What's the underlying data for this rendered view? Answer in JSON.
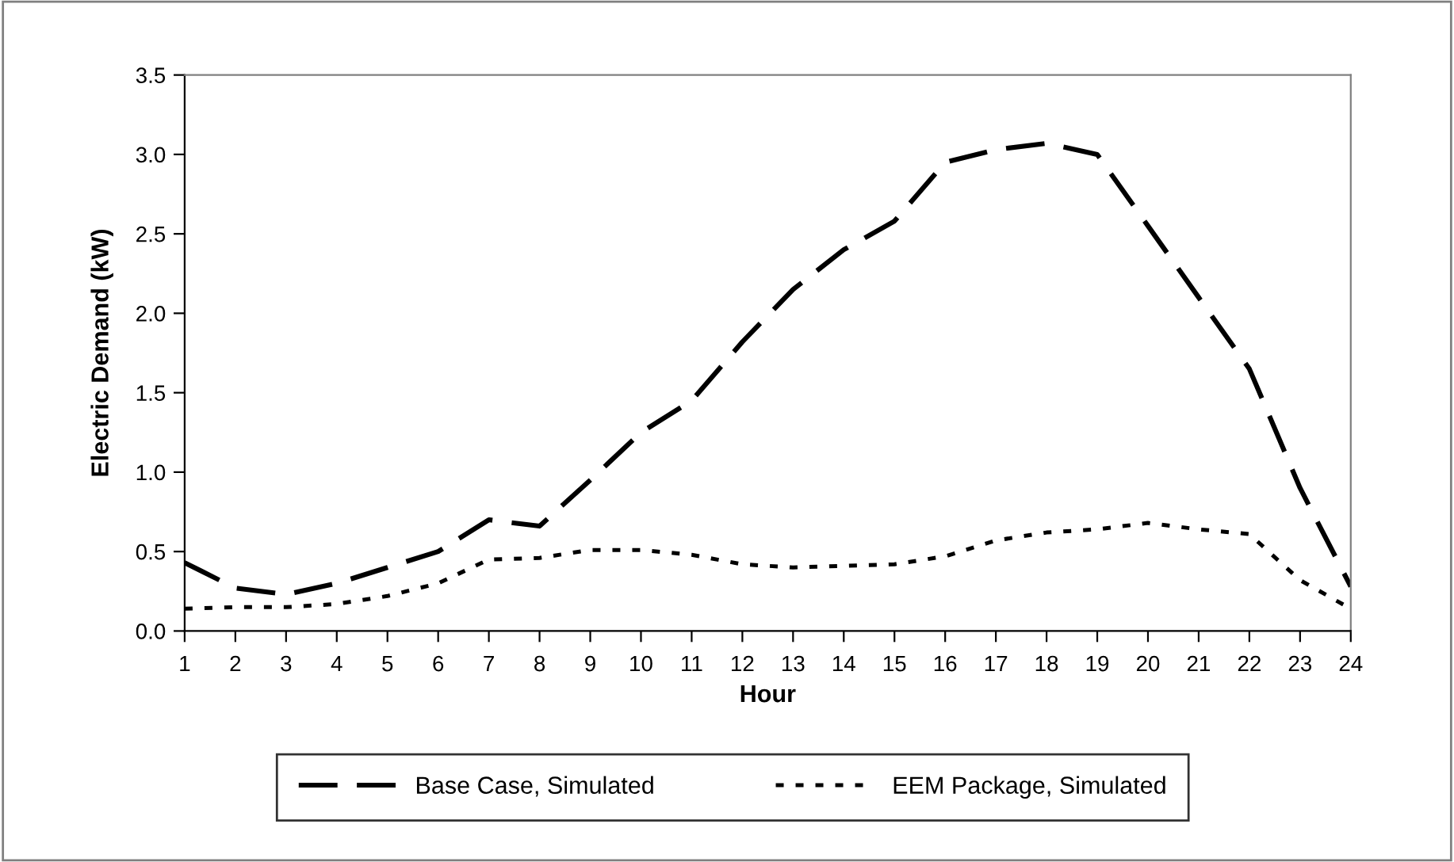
{
  "chart_data": {
    "type": "line",
    "xlabel": "Hour",
    "ylabel": "Electric Demand (kW)",
    "categories": [
      "1",
      "2",
      "3",
      "4",
      "5",
      "6",
      "7",
      "8",
      "9",
      "10",
      "11",
      "12",
      "13",
      "14",
      "15",
      "16",
      "17",
      "18",
      "19",
      "20",
      "21",
      "22",
      "23",
      "24"
    ],
    "series": [
      {
        "name": "Base Case, Simulated",
        "color": "#000000",
        "line_style": "dashed",
        "values": [
          0.43,
          0.27,
          0.23,
          0.3,
          0.4,
          0.5,
          0.7,
          0.66,
          0.95,
          1.25,
          1.45,
          1.82,
          2.15,
          2.4,
          2.58,
          2.95,
          3.03,
          3.07,
          3.0,
          2.55,
          2.1,
          1.65,
          0.9,
          0.28
        ]
      },
      {
        "name": "EEM Package, Simulated",
        "color": "#000000",
        "line_style": "dotted",
        "values": [
          0.14,
          0.15,
          0.15,
          0.17,
          0.22,
          0.3,
          0.45,
          0.46,
          0.51,
          0.51,
          0.48,
          0.42,
          0.4,
          0.41,
          0.42,
          0.47,
          0.57,
          0.62,
          0.64,
          0.68,
          0.64,
          0.61,
          0.32,
          0.14
        ]
      }
    ],
    "ylim": [
      0,
      3.5
    ],
    "yticks": [
      {
        "value": 0,
        "label": "0.0"
      },
      {
        "value": 0.5,
        "label": "0.5"
      },
      {
        "value": 1,
        "label": "1.0"
      },
      {
        "value": 1.5,
        "label": "1.5"
      },
      {
        "value": 2,
        "label": "2.0"
      },
      {
        "value": 2.5,
        "label": "2.5"
      },
      {
        "value": 3,
        "label": "3.0"
      },
      {
        "value": 3.5,
        "label": "3.5"
      }
    ],
    "grid": false,
    "legend": "bottom",
    "marker": "none"
  }
}
